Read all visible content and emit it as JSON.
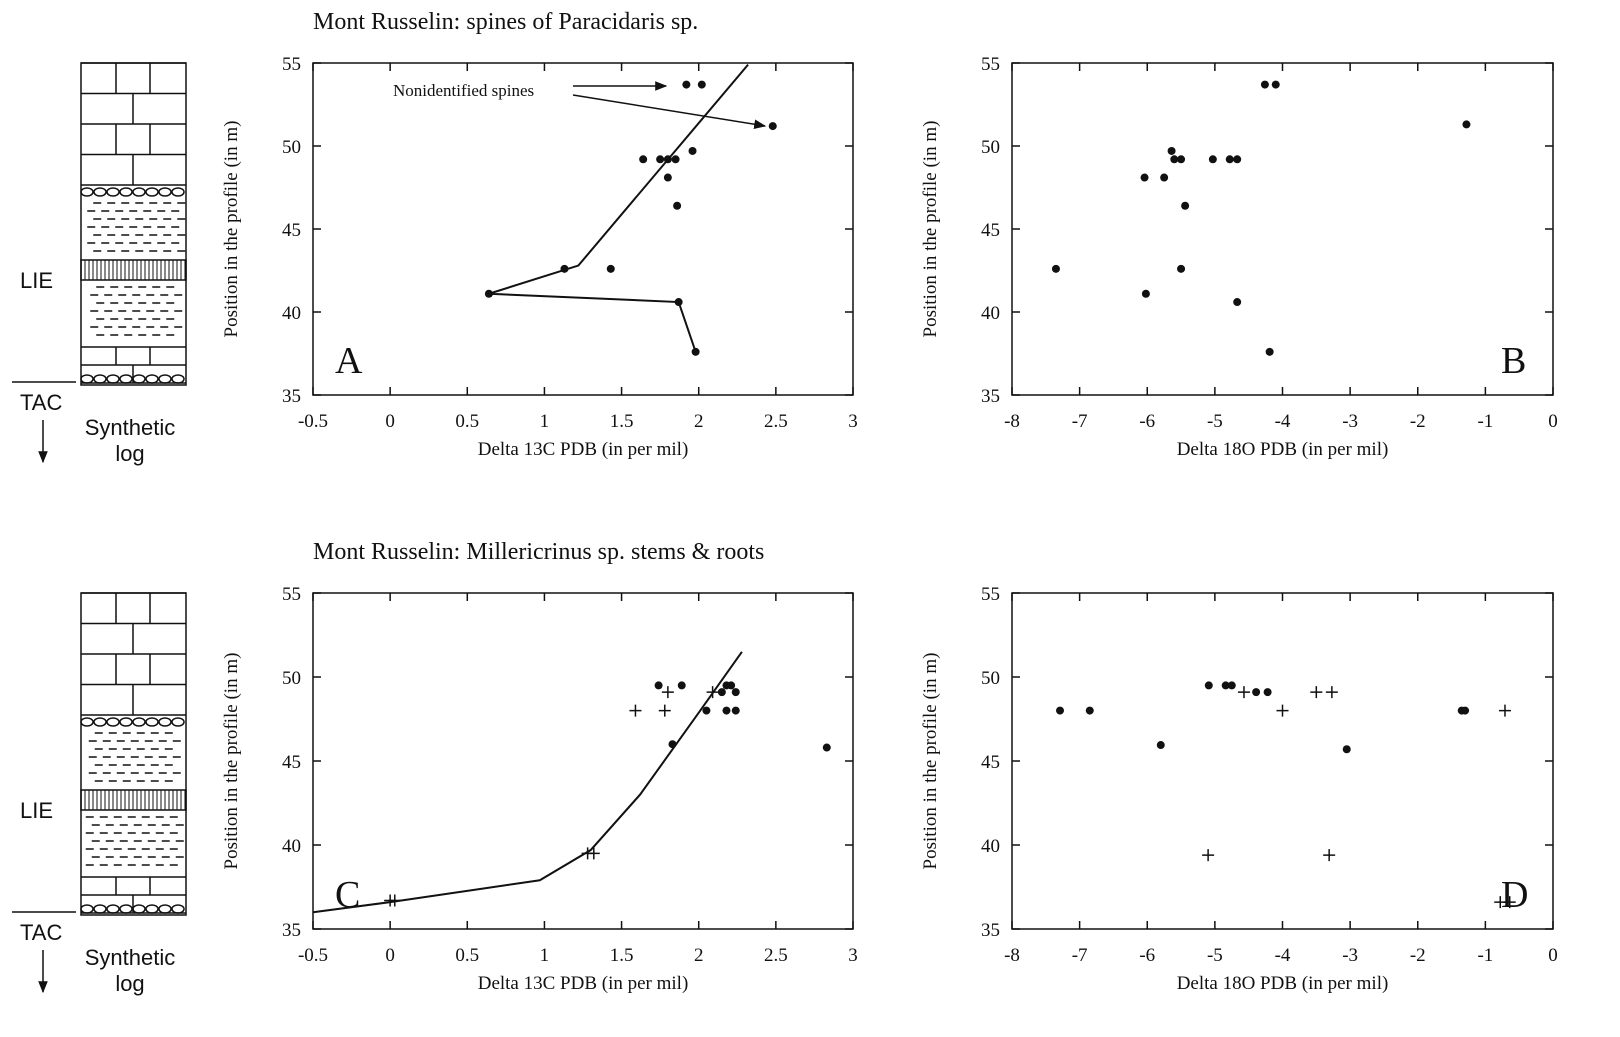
{
  "chart_data": [
    {
      "type": "scatter",
      "title": "Mont Russelin: spines of Paracidaris sp.",
      "panel_label": "A",
      "x_label": "Delta 13C PDB (in per mil)",
      "y_label": "Position in the profile (in m)",
      "annotation": "Nonidentified spines",
      "xlim": [
        -0.5,
        3
      ],
      "xticks": [
        -0.5,
        0,
        0.5,
        1,
        1.5,
        2,
        2.5,
        3
      ],
      "ylim": [
        35,
        55
      ],
      "yticks": [
        35,
        40,
        45,
        50,
        55
      ],
      "series": [
        {
          "marker": "dot",
          "color": "#111111",
          "x": [
            1.92,
            2.02,
            2.48,
            1.64,
            1.75,
            1.8,
            1.85,
            1.96,
            1.8,
            1.86,
            1.13,
            1.43,
            0.64,
            1.87,
            1.98
          ],
          "values": [
            53.7,
            53.7,
            51.2,
            49.2,
            49.2,
            49.2,
            49.2,
            49.7,
            48.1,
            46.4,
            42.6,
            42.6,
            41.1,
            40.6,
            37.6
          ]
        },
        {
          "marker": "line",
          "color": "#111111",
          "x": [
            1.98,
            1.87,
            0.64,
            1.22,
            2.32
          ],
          "values": [
            37.6,
            40.6,
            41.1,
            42.8,
            54.9
          ]
        }
      ]
    },
    {
      "type": "scatter",
      "panel_label": "B",
      "x_label": "Delta 18O PDB (in per mil)",
      "y_label": "Position in the profile (in m)",
      "xlim": [
        -8,
        0
      ],
      "xticks": [
        -8,
        -7,
        -6,
        -5,
        -4,
        -3,
        -2,
        -1,
        0
      ],
      "ylim": [
        35,
        55
      ],
      "yticks": [
        35,
        40,
        45,
        50,
        55
      ],
      "series": [
        {
          "marker": "dot",
          "color": "#111111",
          "x": [
            -4.26,
            -4.1,
            -1.28,
            -5.64,
            -5.6,
            -5.5,
            -5.03,
            -4.78,
            -4.67,
            -6.04,
            -5.75,
            -5.44,
            -7.35,
            -5.5,
            -6.02,
            -4.67,
            -4.19
          ],
          "values": [
            53.7,
            53.7,
            51.3,
            49.7,
            49.2,
            49.2,
            49.2,
            49.2,
            49.2,
            48.1,
            48.1,
            46.4,
            42.6,
            42.6,
            41.1,
            40.6,
            37.6
          ]
        }
      ]
    },
    {
      "type": "scatter",
      "title": "Mont Russelin: Millericrinus sp. stems & roots",
      "panel_label": "C",
      "x_label": "Delta 13C PDB (in per mil)",
      "y_label": "Position in the profile (in m)",
      "xlim": [
        -0.5,
        3
      ],
      "xticks": [
        -0.5,
        0,
        0.5,
        1,
        1.5,
        2,
        2.5,
        3
      ],
      "ylim": [
        35,
        55
      ],
      "yticks": [
        35,
        40,
        45,
        50,
        55
      ],
      "series": [
        {
          "marker": "dot",
          "color": "#111111",
          "x": [
            1.74,
            1.89,
            2.18,
            2.21,
            2.15,
            2.24,
            2.05,
            2.18,
            2.24,
            1.83,
            2.83
          ],
          "values": [
            49.5,
            49.5,
            49.5,
            49.5,
            49.1,
            49.1,
            48.0,
            48.0,
            48.0,
            46.0,
            45.8
          ]
        },
        {
          "marker": "plus",
          "color": "#111111",
          "x": [
            1.8,
            2.09,
            1.59,
            1.78,
            1.28,
            1.32,
            0,
            0.03
          ],
          "values": [
            49.1,
            49.1,
            48.0,
            48.0,
            39.5,
            39.5,
            36.7,
            36.7
          ]
        },
        {
          "marker": "line",
          "color": "#111111",
          "x": [
            -0.5,
            0,
            0.97,
            1.3,
            1.62,
            2.01,
            2.28
          ],
          "values": [
            36.0,
            36.6,
            37.9,
            39.7,
            43.0,
            48.0,
            51.5
          ]
        }
      ]
    },
    {
      "type": "scatter",
      "panel_label": "D",
      "x_label": "Delta 18O PDB (in per mil)",
      "y_label": "Position in the profile (in m)",
      "xlim": [
        -8,
        0
      ],
      "xticks": [
        -8,
        -7,
        -6,
        -5,
        -4,
        -3,
        -2,
        -1,
        0
      ],
      "ylim": [
        35,
        55
      ],
      "yticks": [
        35,
        40,
        45,
        50,
        55
      ],
      "series": [
        {
          "marker": "dot",
          "color": "#111111",
          "x": [
            -7.29,
            -6.85,
            -5.8,
            -5.09,
            -4.84,
            -4.75,
            -4.39,
            -4.22,
            -1.35,
            -1.3,
            -3.05
          ],
          "values": [
            48.0,
            48.0,
            45.95,
            49.5,
            49.5,
            49.5,
            49.1,
            49.1,
            48.0,
            48.0,
            45.7
          ]
        },
        {
          "marker": "plus",
          "color": "#111111",
          "x": [
            -4.57,
            -3.5,
            -3.27,
            -4.0,
            -0.71,
            -5.1,
            -3.31,
            -0.78,
            -0.64
          ],
          "values": [
            49.1,
            49.1,
            49.1,
            48.0,
            48.0,
            39.4,
            39.4,
            36.6,
            36.6
          ]
        }
      ]
    }
  ],
  "logs": [
    {
      "unit": "LIE",
      "base": "TAC",
      "caption": "Synthetic log"
    },
    {
      "unit": "LIE",
      "base": "TAC",
      "caption": "Synthetic log"
    }
  ]
}
